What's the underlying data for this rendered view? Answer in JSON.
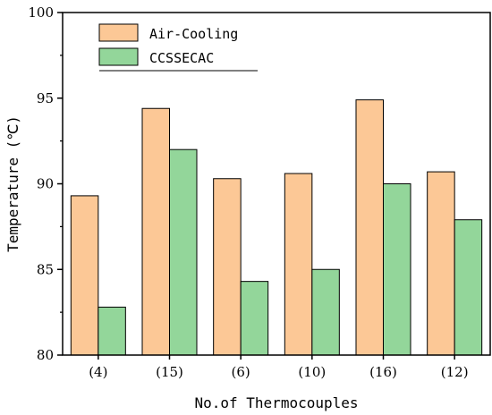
{
  "chart_data": {
    "type": "bar",
    "categories": [
      "(4)",
      "(15)",
      "(6)",
      "(10)",
      "(16)",
      "(12)"
    ],
    "series": [
      {
        "name": "Air-Cooling",
        "values": [
          89.3,
          94.4,
          90.3,
          90.6,
          94.9,
          90.7
        ],
        "color": "#fcc896"
      },
      {
        "name": "CCSSECAC",
        "values": [
          82.8,
          92.0,
          84.3,
          85.0,
          90.0,
          87.9
        ],
        "color": "#93d69a"
      }
    ],
    "xlabel": "No.of Thermocouples",
    "ylabel": "Temperature (℃)",
    "ylim": [
      80,
      100
    ],
    "yticks": [
      "80",
      "85",
      "90",
      "95",
      "100"
    ],
    "legend_position": "top-left",
    "grid": false
  }
}
